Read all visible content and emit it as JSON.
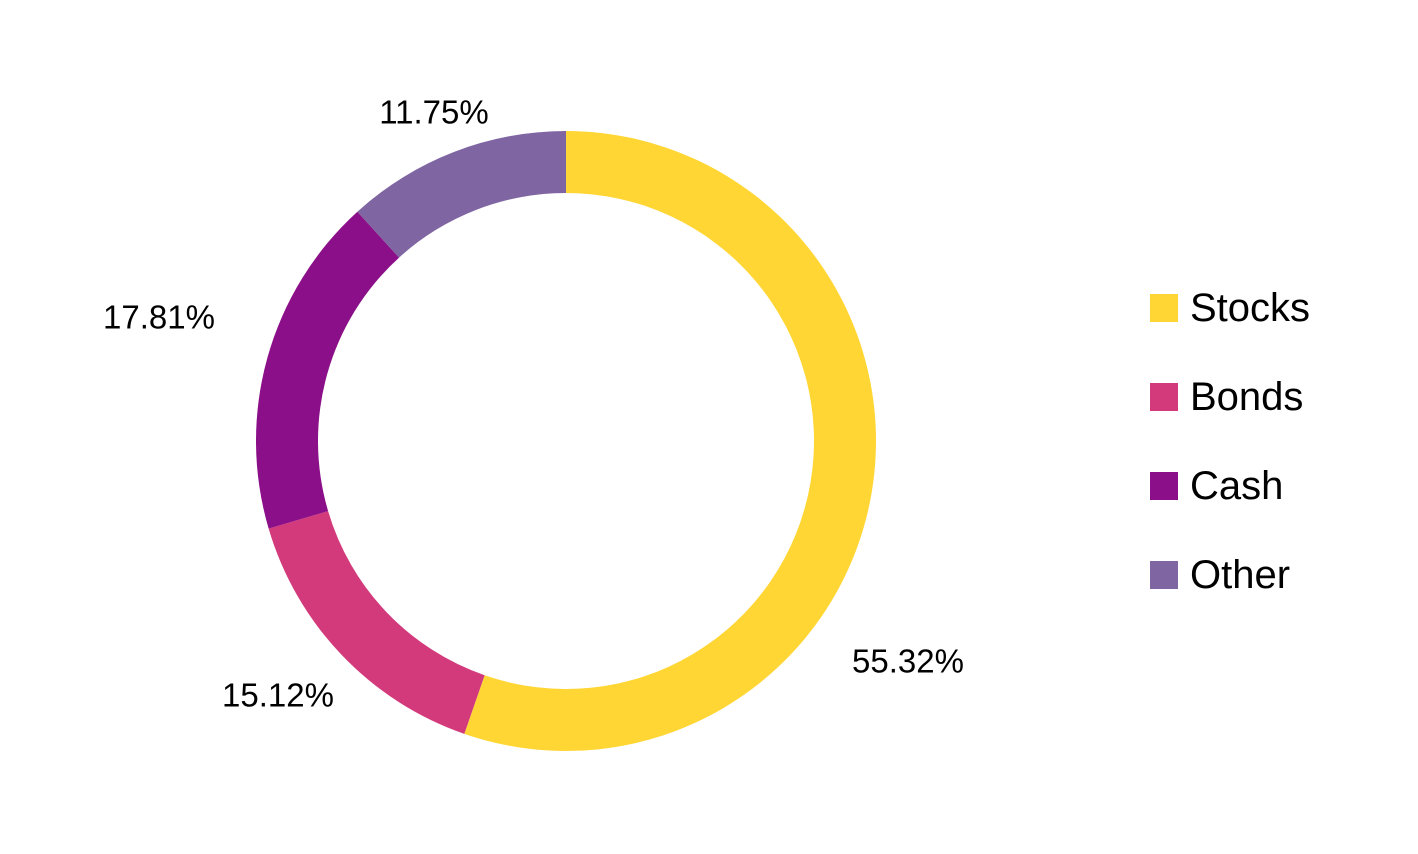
{
  "chart_data": {
    "type": "pie",
    "variant": "donut",
    "title": "",
    "categories": [
      "Stocks",
      "Bonds",
      "Cash",
      "Other"
    ],
    "values": [
      55.32,
      15.12,
      17.81,
      11.75
    ],
    "data_labels": [
      "55.32%",
      "15.12%",
      "17.81%",
      "11.75%"
    ],
    "colors": [
      "#FFD634",
      "#D33A7C",
      "#8B0F88",
      "#8065A3"
    ],
    "start_angle_deg": 0,
    "direction": "clockwise",
    "legend": {
      "position": "right",
      "entries": [
        "Stocks",
        "Bonds",
        "Cash",
        "Other"
      ]
    }
  }
}
